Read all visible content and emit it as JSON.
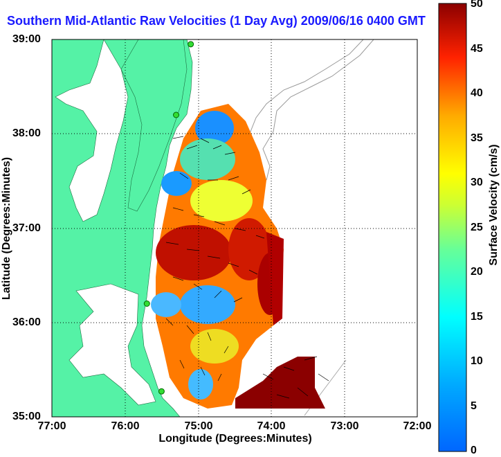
{
  "title": "Southern Mid-Atlantic Raw Velocities (1 Day Avg) 2009/06/16 0400 GMT",
  "xlabel": "Longitude (Degrees:Minutes)",
  "ylabel": "Latitude (Degrees:Minutes)",
  "x_ticks": [
    "77:00",
    "76:00",
    "75:00",
    "74:00",
    "73:00",
    "72:00"
  ],
  "y_ticks": [
    "39:00",
    "38:00",
    "37:00",
    "36:00",
    "35:00"
  ],
  "colorbar": {
    "label": "Surface Velocity (cm/s)",
    "ticks": [
      "50",
      "45",
      "40",
      "35",
      "30",
      "25",
      "20",
      "15",
      "10",
      "5",
      "0"
    ],
    "range": [
      0,
      50
    ],
    "colormap": "jet"
  },
  "map": {
    "land_color": "#55f2a6",
    "lon_range_west": [
      77,
      72
    ],
    "lat_range": [
      35,
      39
    ],
    "stations": [
      {
        "lon": 75.1,
        "lat": 38.95
      },
      {
        "lon": 75.3,
        "lat": 38.2
      },
      {
        "lon": 75.7,
        "lat": 36.2
      },
      {
        "lon": 75.5,
        "lat": 35.27
      }
    ]
  }
}
